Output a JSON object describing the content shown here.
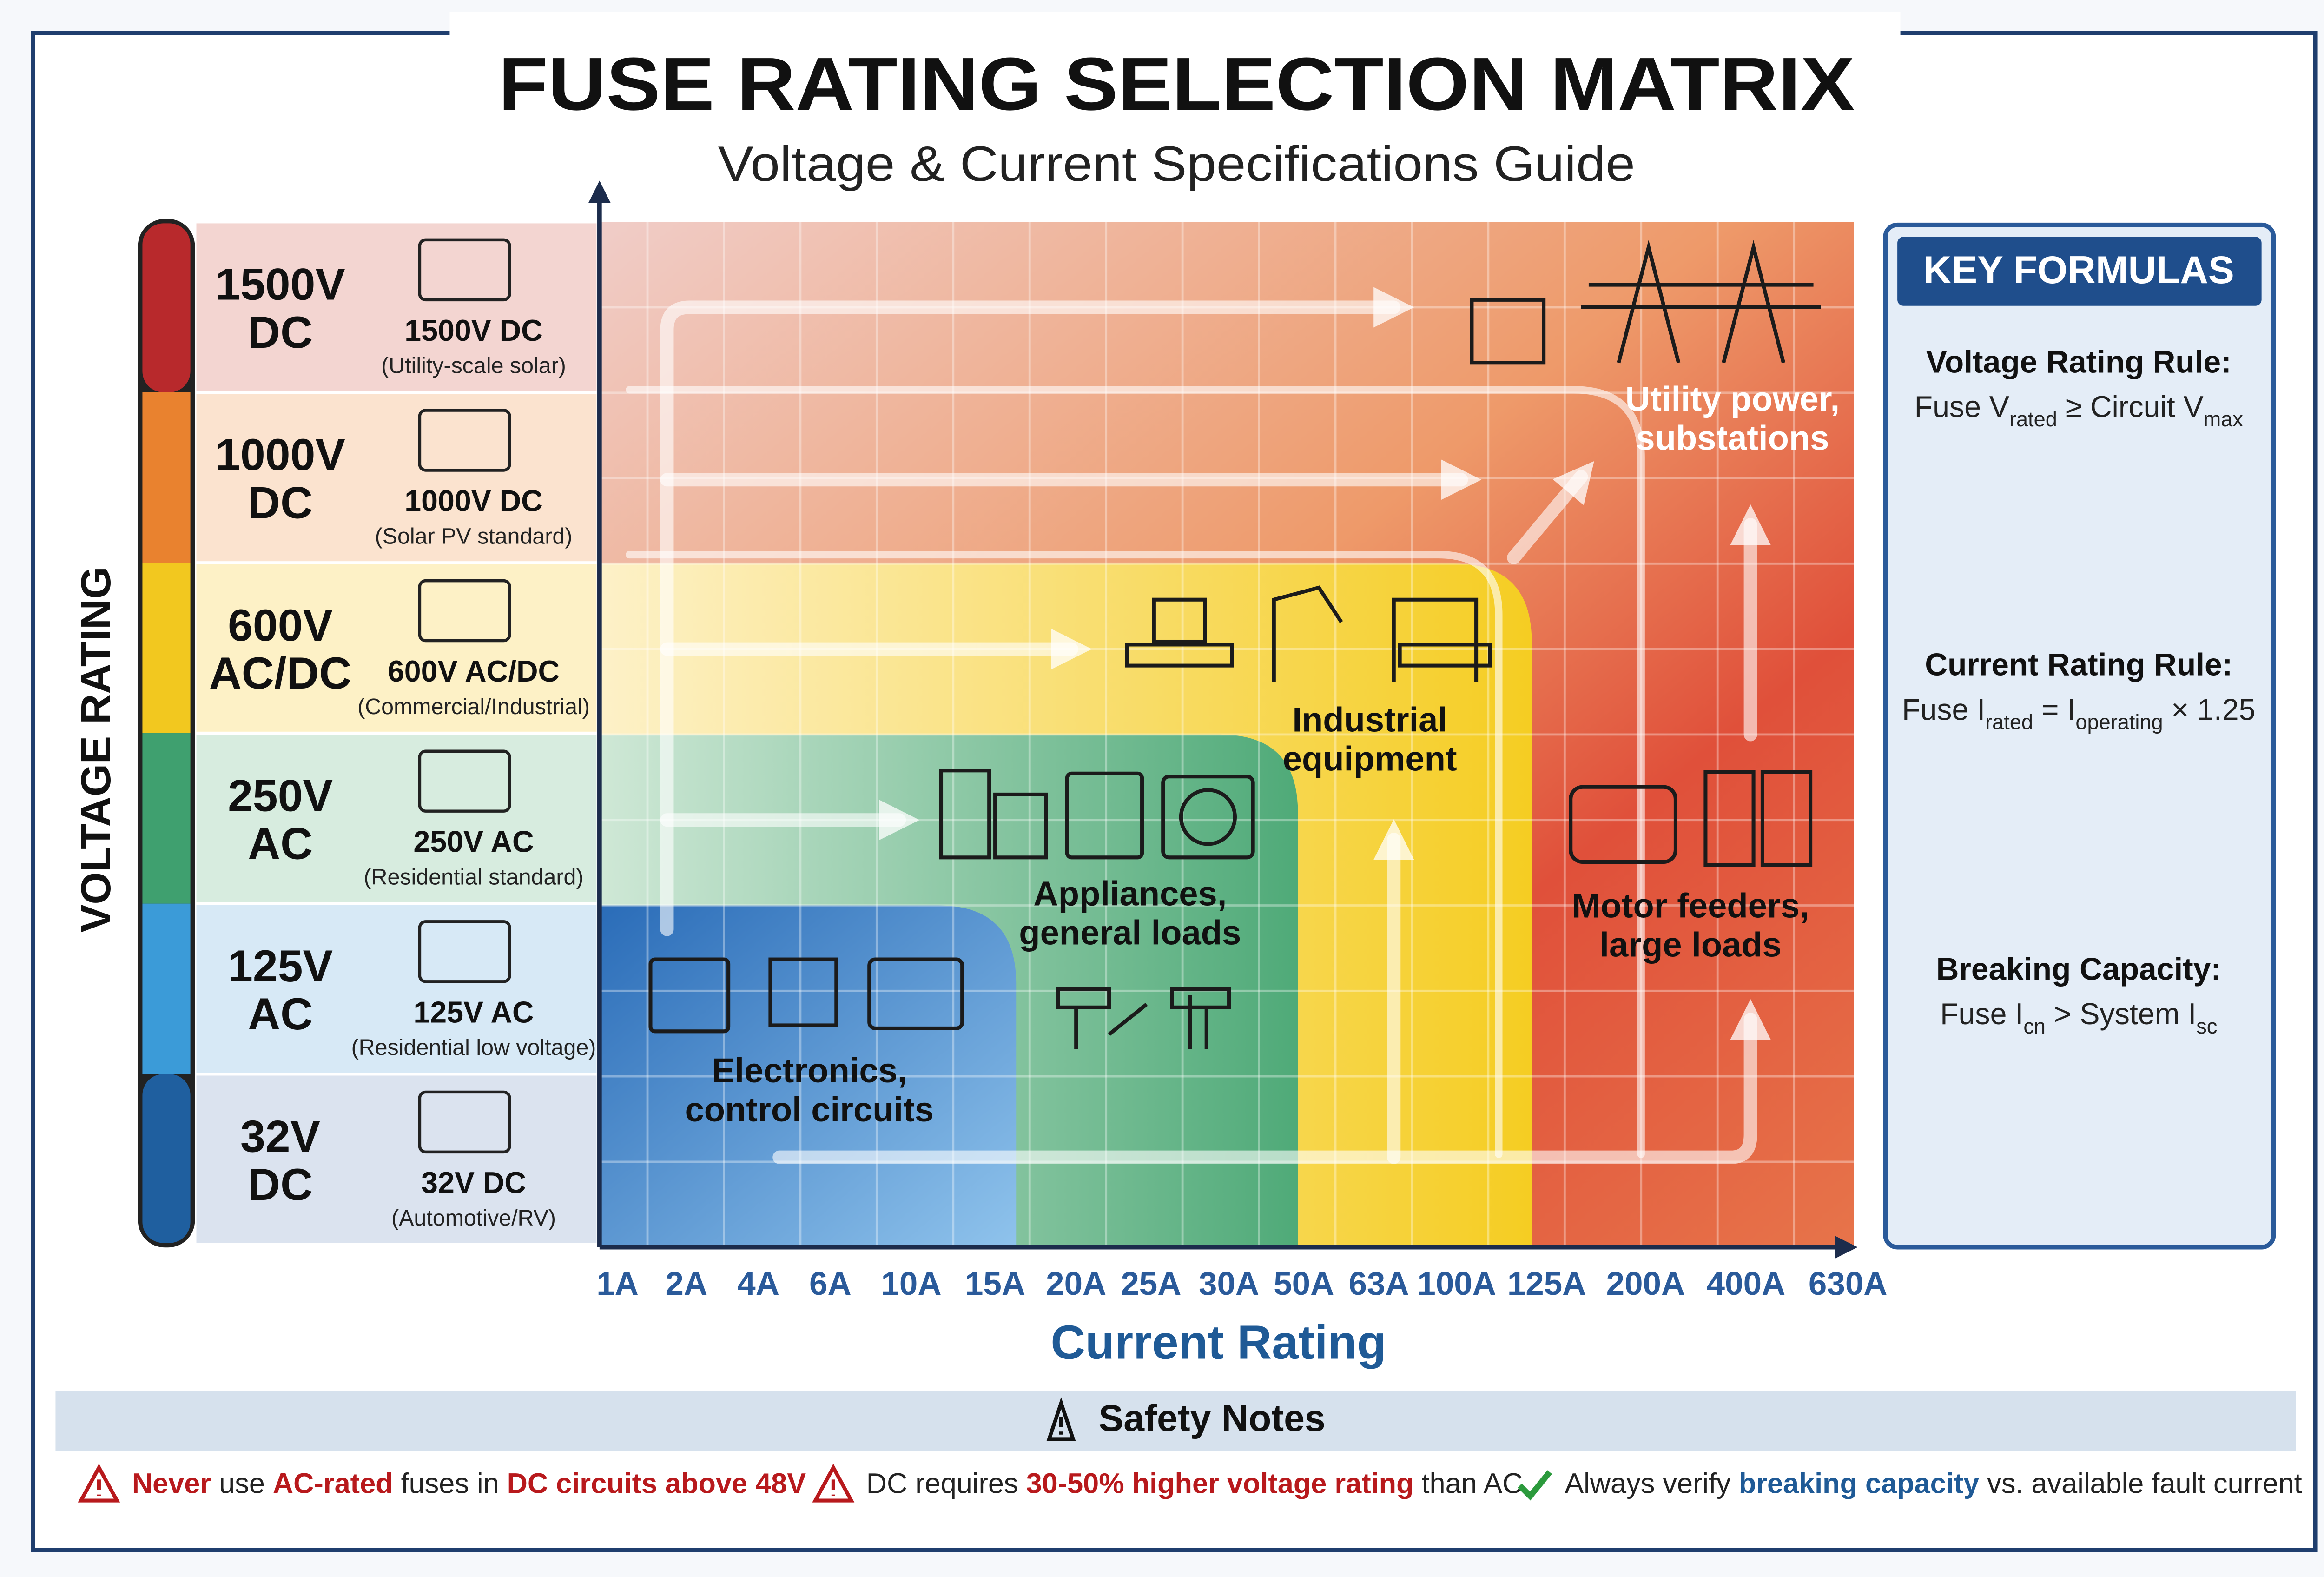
{
  "header": {
    "title": "FUSE RATING SELECTION MATRIX",
    "subtitle": "Voltage & Current Specifications Guide"
  },
  "y_axis": {
    "label": "VOLTAGE RATING"
  },
  "rows": [
    {
      "line1": "1500V",
      "line2": "DC",
      "label": "1500V DC",
      "note": "(Utility-scale solar)",
      "color": "#b8292c",
      "tint": "#f3d5d1"
    },
    {
      "line1": "1000V",
      "line2": "DC",
      "label": "1000V DC",
      "note": "(Solar PV standard)",
      "color": "#e9822f",
      "tint": "#fbe3cf"
    },
    {
      "line1": "600V",
      "line2": "AC/DC",
      "label": "600V AC/DC",
      "note": "(Commercial/Industrial)",
      "color": "#f2c81f",
      "tint": "#fdf1c6"
    },
    {
      "line1": "250V",
      "line2": "AC",
      "label": "250V AC",
      "note": "(Residential standard)",
      "color": "#3fa06f",
      "tint": "#d7ecdf"
    },
    {
      "line1": "125V",
      "line2": "AC",
      "label": "125V AC",
      "note": "(Residential low voltage)",
      "color": "#3b9bd8",
      "tint": "#d7e9f6"
    },
    {
      "line1": "32V",
      "line2": "DC",
      "label": "32V DC",
      "note": "(Automotive/RV)",
      "color": "#1f5f9f",
      "tint": "#dbe3ef"
    }
  ],
  "x_axis": {
    "label": "Current Rating",
    "ticks": [
      "1A",
      "2A",
      "4A",
      "6A",
      "10A",
      "15A",
      "20A",
      "25A",
      "30A",
      "50A",
      "63A",
      "100A",
      "125A",
      "200A",
      "400A",
      "630A"
    ]
  },
  "zones": [
    {
      "line1": "Electronics,",
      "line2": "control circuits"
    },
    {
      "line1": "Appliances,",
      "line2": "general loads"
    },
    {
      "line1": "Industrial",
      "line2": "equipment"
    },
    {
      "line1": "Motor feeders,",
      "line2": "large loads"
    },
    {
      "line1": "Utility power,",
      "line2": "substations"
    }
  ],
  "formulas": {
    "title": "KEY FORMULAS",
    "items": [
      {
        "heading": "Voltage Rating Rule:",
        "parts": [
          {
            "text": "Fuse V"
          },
          {
            "sub": "rated"
          },
          {
            "text": " ≥ Circuit V"
          },
          {
            "sub": "max"
          }
        ]
      },
      {
        "heading": "Current Rating Rule:",
        "parts": [
          {
            "text": "Fuse I"
          },
          {
            "sub": "rated"
          },
          {
            "text": " = I"
          },
          {
            "sub": "operating"
          },
          {
            "text": " × 1.25"
          }
        ]
      },
      {
        "heading": "Breaking Capacity:",
        "parts": [
          {
            "text": "Fuse I"
          },
          {
            "sub": "cn"
          },
          {
            "text": " > System I"
          },
          {
            "sub": "sc"
          }
        ]
      }
    ]
  },
  "safety": {
    "title": "Safety Notes",
    "notes": [
      {
        "icon": "warning",
        "parts": [
          {
            "text": "Never",
            "style": "red"
          },
          {
            "text": " use "
          },
          {
            "text": "AC-rated",
            "style": "red"
          },
          {
            "text": " fuses in "
          },
          {
            "text": "DC circuits above 48V",
            "style": "red"
          }
        ]
      },
      {
        "icon": "warning",
        "parts": [
          {
            "text": "DC requires "
          },
          {
            "text": "30-50% higher voltage rating",
            "style": "red"
          },
          {
            "text": " than AC"
          }
        ]
      },
      {
        "icon": "check",
        "parts": [
          {
            "text": "Always verify "
          },
          {
            "text": "breaking capacity",
            "style": "blue"
          },
          {
            "text": " vs. available fault current"
          }
        ]
      }
    ]
  }
}
